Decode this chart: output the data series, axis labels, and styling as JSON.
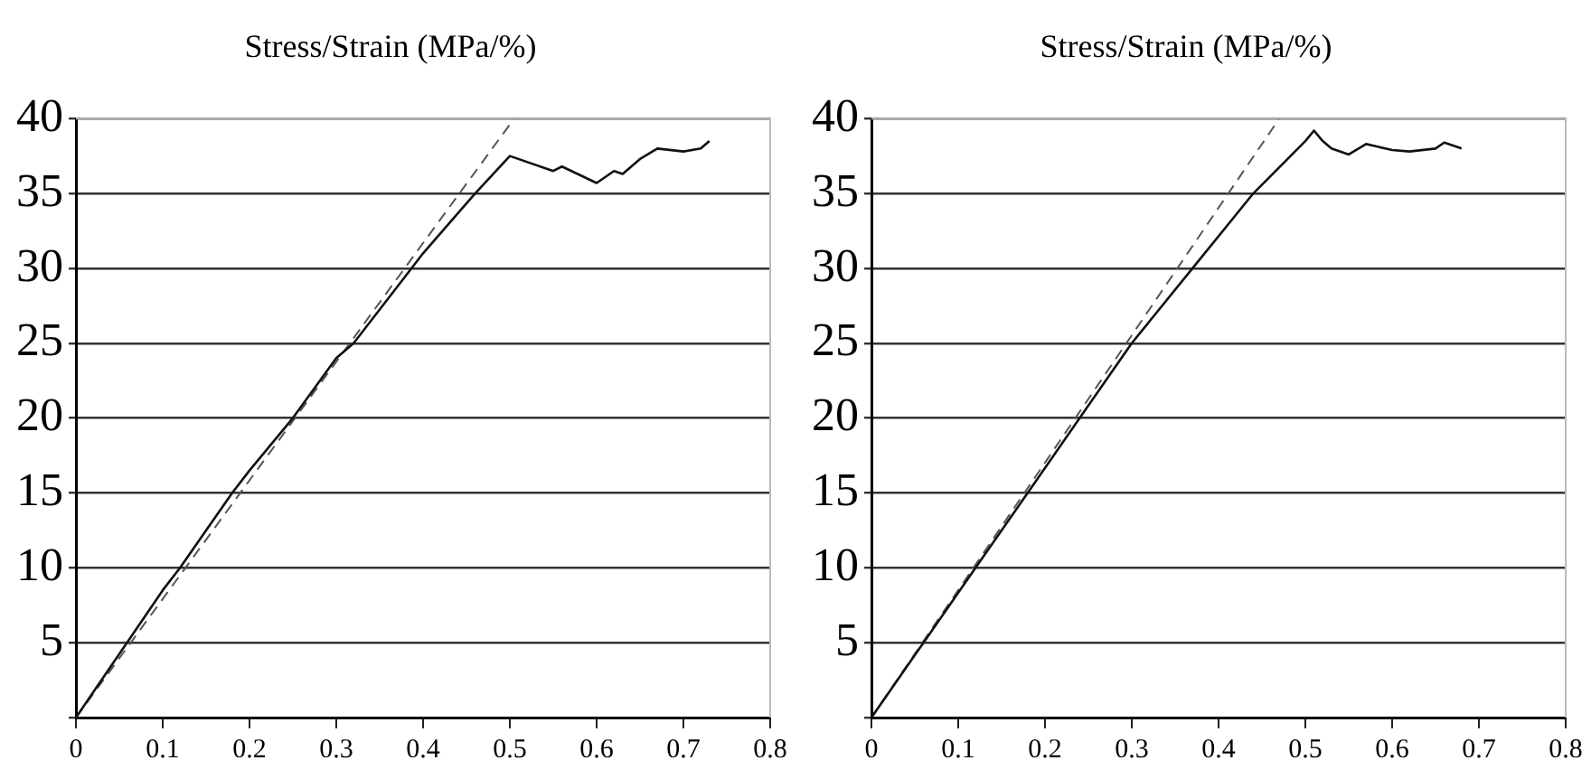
{
  "chart_data": [
    {
      "type": "line",
      "title": "Stress/Strain (MPa/%)",
      "xlim": [
        0,
        0.8
      ],
      "xticks": [
        0,
        0.1,
        0.2,
        0.3,
        0.4,
        0.5,
        0.6,
        0.7,
        0.8
      ],
      "ylim": [
        0,
        40
      ],
      "yticks": [
        {
          "value": 0,
          "label": null
        },
        5,
        10,
        15,
        20,
        25,
        30,
        35,
        40
      ],
      "grid": "y",
      "legend": false,
      "marker": "none",
      "series": [
        {
          "color": "#111111",
          "line_style": "solid",
          "x": [
            0,
            0.1,
            0.12,
            0.18,
            0.2,
            0.25,
            0.3,
            0.32,
            0.38,
            0.4,
            0.46,
            0.5,
            0.55,
            0.56,
            0.6,
            0.62,
            0.63,
            0.65,
            0.67,
            0.7,
            0.72,
            0.73
          ],
          "values": [
            0,
            8.5,
            10,
            15,
            16.5,
            20,
            24,
            25,
            29.5,
            31,
            35,
            37.5,
            36.5,
            36.8,
            35.7,
            36.5,
            36.3,
            37.3,
            38,
            37.8,
            38,
            38.5
          ]
        },
        {
          "color": "#555555",
          "line_style": "dashed",
          "x": [
            0,
            0.505
          ],
          "values": [
            0,
            40
          ]
        }
      ]
    },
    {
      "type": "line",
      "title": "Stress/Strain (MPa/%)",
      "xlim": [
        0,
        0.8
      ],
      "xticks": [
        0,
        0.1,
        0.2,
        0.3,
        0.4,
        0.5,
        0.6,
        0.7,
        0.8
      ],
      "ylim": [
        0,
        40
      ],
      "yticks": [
        {
          "value": 0,
          "label": null
        },
        5,
        10,
        15,
        20,
        25,
        30,
        35,
        40
      ],
      "grid": "y",
      "legend": false,
      "marker": "none",
      "series": [
        {
          "color": "#111111",
          "line_style": "solid",
          "x": [
            0,
            0.12,
            0.18,
            0.24,
            0.3,
            0.37,
            0.44,
            0.5,
            0.51,
            0.52,
            0.53,
            0.55,
            0.57,
            0.6,
            0.62,
            0.65,
            0.66,
            0.68
          ],
          "values": [
            0,
            10,
            15,
            20,
            25,
            30,
            35,
            38.5,
            39.2,
            38.5,
            38,
            37.6,
            38.3,
            37.9,
            37.8,
            38,
            38.4,
            38
          ]
        },
        {
          "color": "#555555",
          "line_style": "dashed",
          "x": [
            0,
            0.47
          ],
          "values": [
            0,
            40
          ]
        }
      ]
    }
  ]
}
